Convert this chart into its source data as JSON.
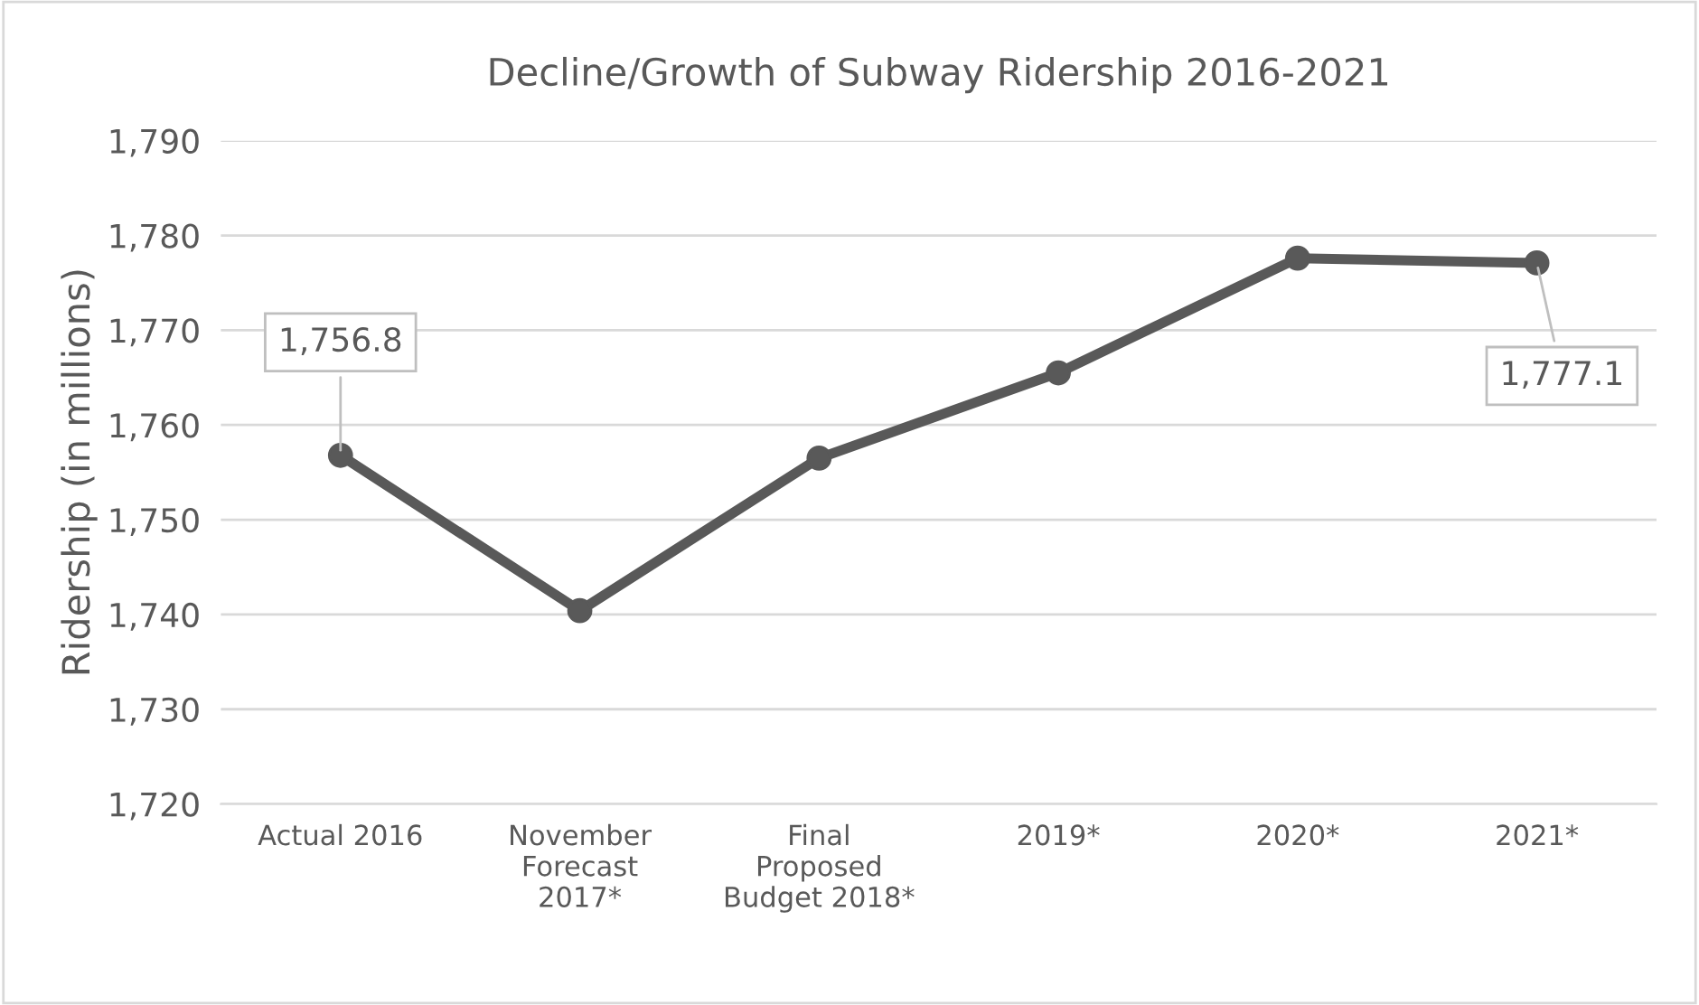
{
  "chart_data": {
    "type": "line",
    "title": "Decline/Growth of Subway Ridership 2016-2021",
    "ylabel": "Ridership (in millions)",
    "categories": [
      "Actual 2016",
      "November\nForecast\n2017*",
      "Final\nProposed\nBudget 2018*",
      "2019*",
      "2020*",
      "2021*"
    ],
    "series": [
      {
        "color": "#595959",
        "values": [
          1756.8,
          1740.4,
          1756.5,
          1765.5,
          1777.6,
          1777.1
        ]
      }
    ],
    "ylim": [
      1720,
      1790
    ],
    "yticks": [
      {
        "value": 1720,
        "label": "1,720"
      },
      {
        "value": 1730,
        "label": "1,730"
      },
      {
        "value": 1740,
        "label": "1,740"
      },
      {
        "value": 1750,
        "label": "1,750"
      },
      {
        "value": 1760,
        "label": "1,760"
      },
      {
        "value": 1770,
        "label": "1,770"
      },
      {
        "value": 1780,
        "label": "1,780"
      },
      {
        "value": 1790,
        "label": "1,790"
      }
    ],
    "grid": "y",
    "marker": "circle",
    "line_style": "solid",
    "legend": false,
    "annotations": [
      {
        "text": "1,756.8",
        "x": "Actual 2016",
        "y": 1756.8
      },
      {
        "text": "1,777.1",
        "x": "2021*",
        "y": 1777.1
      }
    ]
  }
}
